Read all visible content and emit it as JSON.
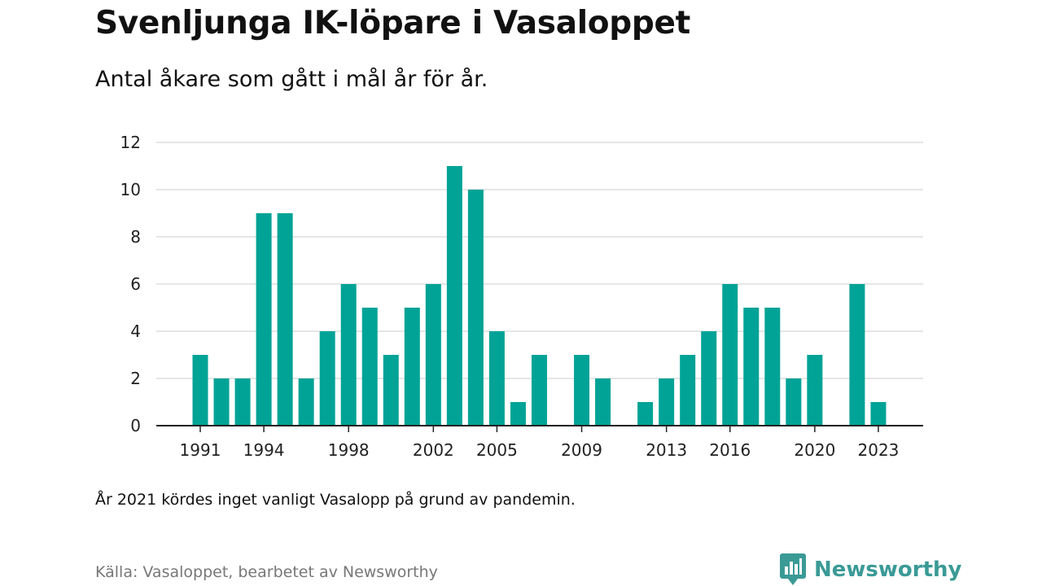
{
  "title": "Svenljunga IK-löpare i Vasaloppet",
  "subtitle": "Antal åkare som gått i mål år för år.",
  "note": "År 2021 kördes inget vanligt Vasalopp på grund av pandemin.",
  "source": "Källa: Vasaloppet, bearbetet av Newsworthy",
  "brand": {
    "name": "Newsworthy",
    "icon": "newsworthy-logo-icon",
    "color": "#3a9a96"
  },
  "chart_data": {
    "type": "bar",
    "bar_color": "#00a396",
    "x": [
      1991,
      1992,
      1993,
      1994,
      1995,
      1996,
      1997,
      1998,
      1999,
      2000,
      2001,
      2002,
      2003,
      2004,
      2005,
      2006,
      2007,
      2008,
      2009,
      2010,
      2011,
      2012,
      2013,
      2014,
      2015,
      2016,
      2017,
      2018,
      2019,
      2020,
      2021,
      2022,
      2023
    ],
    "values": [
      3,
      2,
      2,
      9,
      9,
      2,
      4,
      6,
      5,
      3,
      5,
      6,
      11,
      10,
      4,
      1,
      3,
      0,
      3,
      2,
      0,
      1,
      2,
      3,
      4,
      6,
      5,
      5,
      2,
      3,
      0,
      6,
      1
    ],
    "x_tick_labels": [
      1991,
      1994,
      1998,
      2002,
      2005,
      2009,
      2013,
      2016,
      2020,
      2023
    ],
    "y_ticks": [
      0,
      2,
      4,
      6,
      8,
      10,
      12
    ],
    "ylim": [
      0,
      12
    ],
    "grid": true,
    "xlabel": "",
    "ylabel": ""
  }
}
